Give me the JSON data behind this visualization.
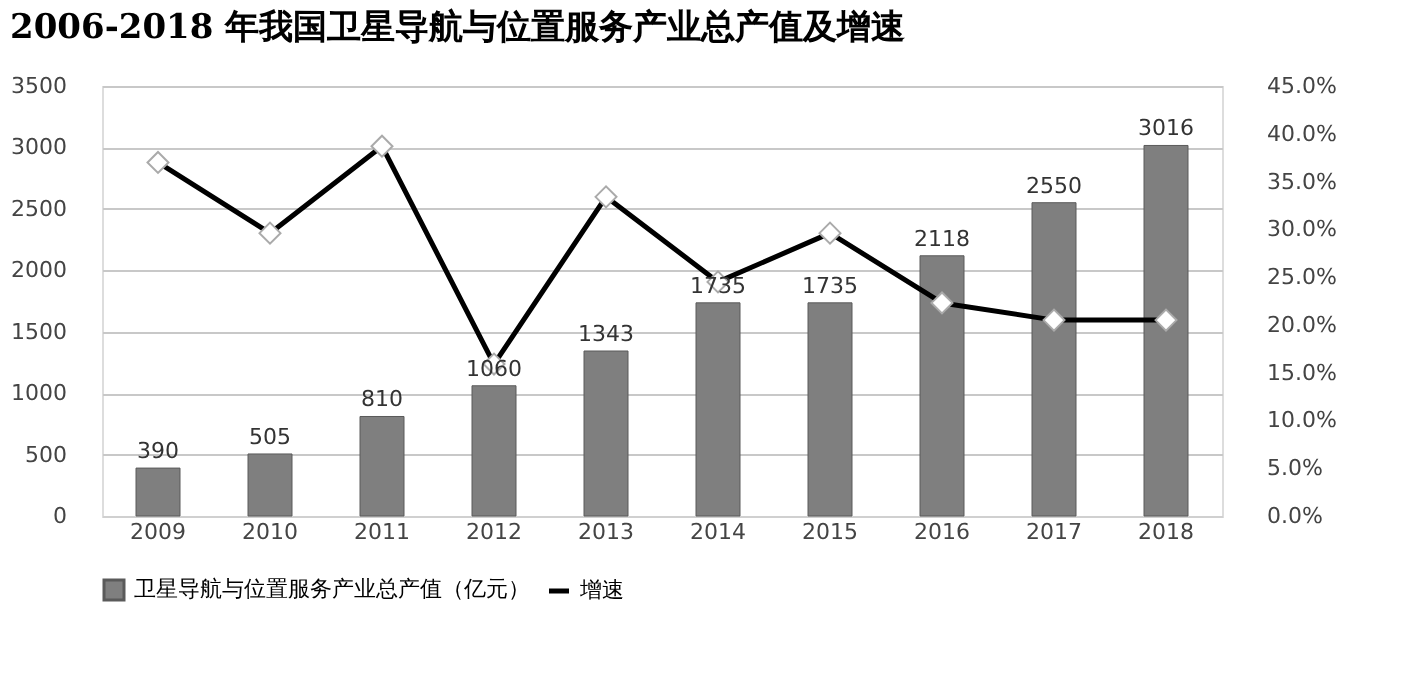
{
  "chart_data": {
    "type": "bar",
    "title": "2006-2018 年我国卫星导航与位置服务产业总产值及增速",
    "categories": [
      "2009",
      "2010",
      "2011",
      "2012",
      "2013",
      "2014",
      "2015",
      "2016",
      "2017",
      "2018"
    ],
    "series": [
      {
        "name": "卫星导航与位置服务产业总产值（亿元）",
        "color": "#7f7f7f",
        "values": [
          390,
          505,
          810,
          1060,
          1343,
          1735,
          1735,
          2118,
          2550,
          3016
        ],
        "value_labels": [
          "390",
          "505",
          "810",
          "1060",
          "1343",
          "1735",
          "1735",
          "2118",
          "2550",
          "3016"
        ]
      },
      {
        "name": "增速",
        "type": "line",
        "axis": "y2",
        "color": "#000000",
        "marker": "diamond",
        "values": [
          37.0,
          29.6,
          38.7,
          15.9,
          33.4,
          24.5,
          29.6,
          22.3,
          20.5,
          20.5
        ]
      }
    ],
    "ylim": [
      0,
      3500
    ],
    "yticks": [
      0,
      500,
      1000,
      1500,
      2000,
      2500,
      3000,
      3500
    ],
    "y2lim": [
      0,
      45
    ],
    "y2ticks": [
      {
        "value": 0,
        "label": "0.0%"
      },
      {
        "value": 5,
        "label": "5.0%"
      },
      {
        "value": 10,
        "label": "10.0%"
      },
      {
        "value": 15,
        "label": "15.0%"
      },
      {
        "value": 20,
        "label": "20.0%"
      },
      {
        "value": 25,
        "label": "25.0%"
      },
      {
        "value": 30,
        "label": "30.0%"
      },
      {
        "value": 35,
        "label": "35.0%"
      },
      {
        "value": 40,
        "label": "40.0%"
      },
      {
        "value": 45,
        "label": "45.0%"
      }
    ],
    "grid": "y",
    "legend": "bottom"
  }
}
